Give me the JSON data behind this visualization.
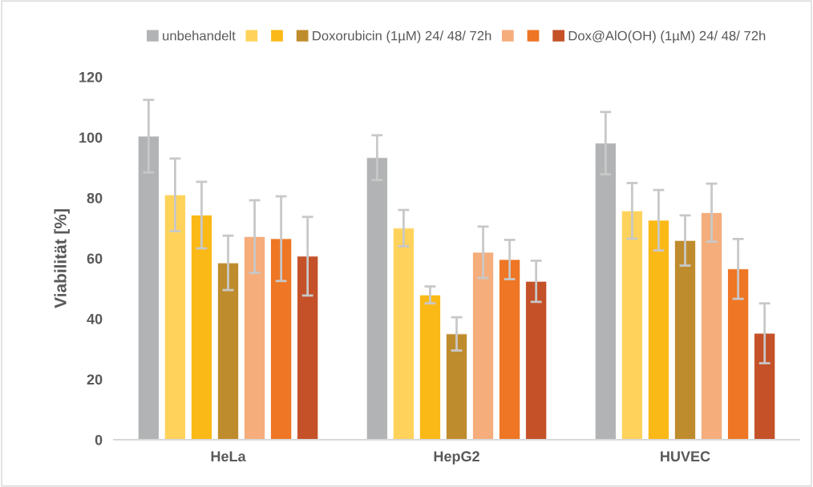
{
  "chart_data": {
    "type": "bar",
    "ylabel": "Viabilität [%]",
    "categories": [
      "HeLa",
      "HepG2",
      "HUVEC"
    ],
    "series": [
      {
        "name": "unbehandelt",
        "color": "#b2b3b4",
        "values": [
          100.4,
          93.3,
          98.1
        ],
        "errors": [
          12,
          7.4,
          10.3
        ]
      },
      {
        "color": "#ffd35b",
        "values": [
          81.0,
          70.0,
          75.7
        ],
        "errors": [
          12,
          6,
          9.2
        ]
      },
      {
        "color": "#fbb917",
        "values": [
          74.3,
          47.9,
          72.6
        ],
        "errors": [
          11,
          2.8,
          10
        ]
      },
      {
        "name": "Doxorubicin (1µM) 24/ 48/ 72h",
        "color": "#bf8c2d",
        "values": [
          58.5,
          35.0,
          65.9
        ],
        "errors": [
          9,
          5.5,
          8.3
        ]
      },
      {
        "color": "#f5ad7c",
        "values": [
          67.2,
          62.0,
          75.1
        ],
        "errors": [
          12,
          8.5,
          9.6
        ]
      },
      {
        "color": "#ee7624",
        "values": [
          66.5,
          59.6,
          56.5
        ],
        "errors": [
          14,
          6.5,
          9.9
        ]
      },
      {
        "name": "Dox@AlO(OH) (1µM) 24/ 48/ 72h",
        "color": "#c45128",
        "values": [
          60.7,
          52.4,
          35.2
        ],
        "errors": [
          13,
          6.8,
          9.9
        ]
      }
    ],
    "ylim": [
      0,
      120
    ],
    "yticks": [
      0,
      20,
      40,
      60,
      80,
      100,
      120
    ],
    "grid": false,
    "legend": "top"
  }
}
